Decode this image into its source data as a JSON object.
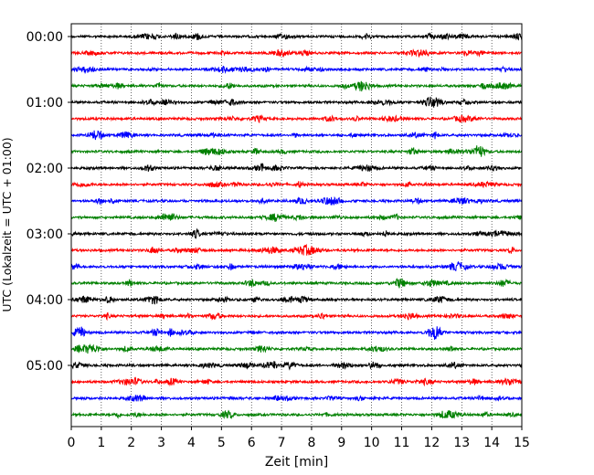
{
  "chart_data": {
    "type": "line",
    "title": "",
    "xlabel": "Zeit  [min]",
    "ylabel": "UTC (Lokalzeit = UTC + 01:00)",
    "xlim": [
      0,
      15
    ],
    "x_ticks": [
      "0",
      "1",
      "2",
      "3",
      "4",
      "5",
      "6",
      "7",
      "8",
      "9",
      "10",
      "11",
      "12",
      "13",
      "14",
      "15"
    ],
    "y_tick_labels": [
      "00:00",
      "01:00",
      "02:00",
      "03:00",
      "04:00",
      "05:00"
    ],
    "grid": "vertical dotted lines at each minute",
    "trace_interval_minutes": 15,
    "trace_count": 24,
    "trace_start_times": [
      "00:00",
      "00:15",
      "00:30",
      "00:45",
      "01:00",
      "01:15",
      "01:30",
      "01:45",
      "02:00",
      "02:15",
      "02:30",
      "02:45",
      "03:00",
      "03:15",
      "03:30",
      "03:45",
      "04:00",
      "04:15",
      "04:30",
      "04:45",
      "05:00",
      "05:15",
      "05:30",
      "05:45"
    ],
    "color_cycle": [
      "#000000",
      "#ff0000",
      "#0000ff",
      "#008000"
    ]
  }
}
